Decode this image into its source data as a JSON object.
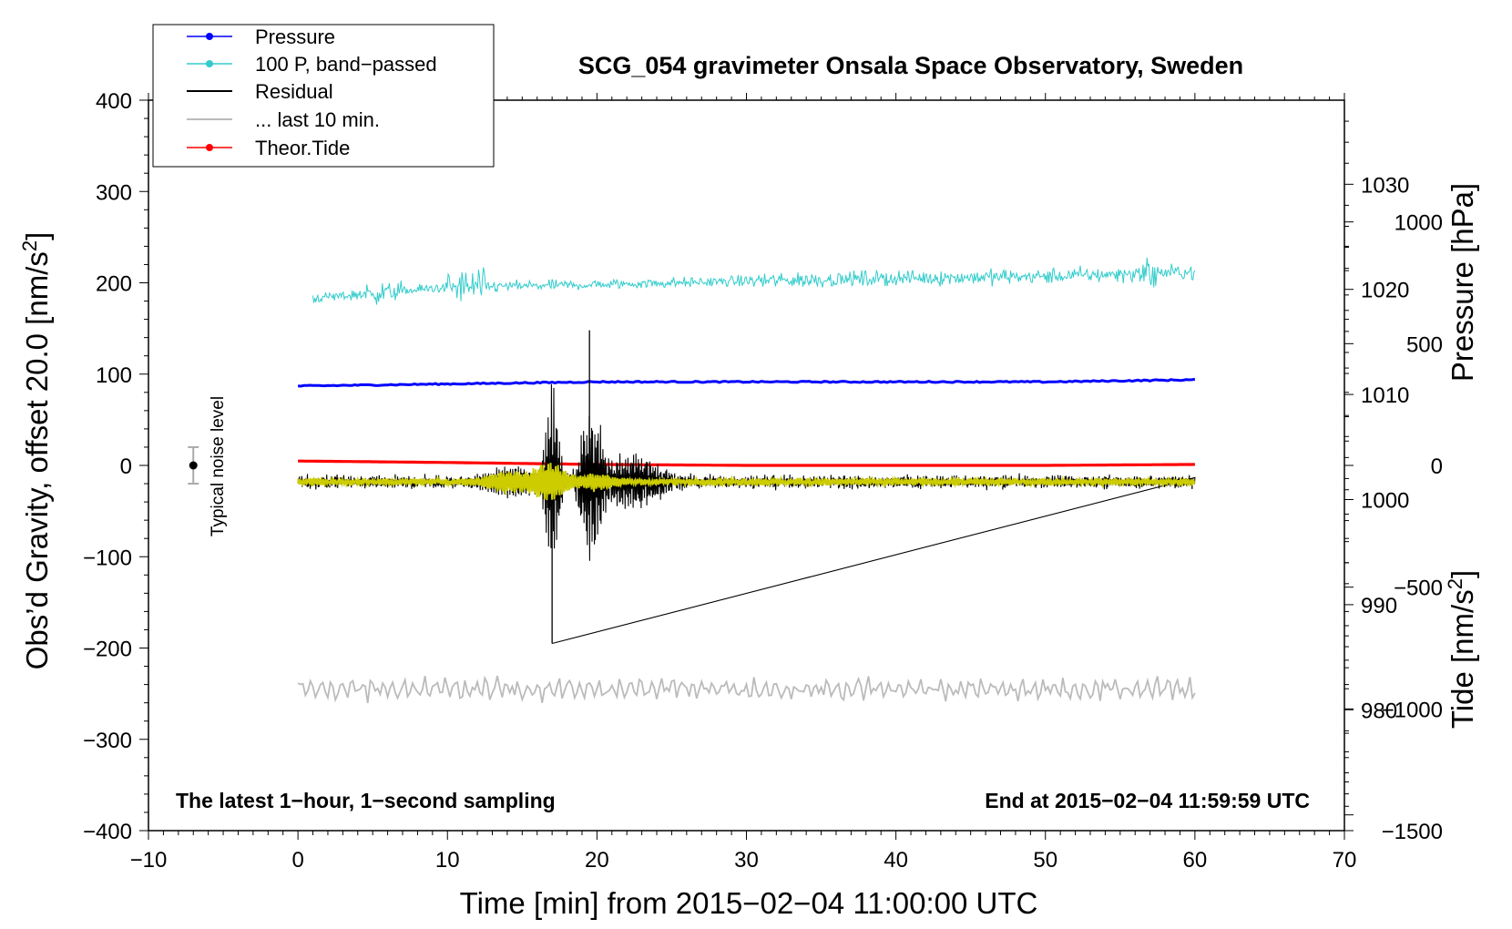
{
  "chart_data": {
    "type": "line",
    "title": "SCG_054 gravimeter Onsala Space Observatory, Sweden",
    "xlabel": "Time [min] from 2015−02−04 11:00:00 UTC",
    "ylabel_left_main": "Obs’d Gravity, offset 20.0 [nm/s",
    "ylabel_left_sup": "2",
    "ylabel_left_end": "]",
    "ylabel_right_pressure": "Pressure [hPa]",
    "ylabel_right_tide_main": "Tide [nm/s",
    "ylabel_right_tide_sup": "2",
    "ylabel_right_tide_end": "]",
    "xlim": [
      -10,
      70
    ],
    "ylim_left": [
      -400,
      400
    ],
    "ylim_pressure": [
      968.5,
      1038
    ],
    "ylim_tide": [
      -1500,
      1500
    ],
    "x_ticks": [
      -10,
      0,
      10,
      20,
      30,
      40,
      50,
      60,
      70
    ],
    "x_tick_labels": [
      "−10",
      "0",
      "10",
      "20",
      "30",
      "40",
      "50",
      "60",
      "70"
    ],
    "y_left_ticks": [
      -400,
      -300,
      -200,
      -100,
      0,
      100,
      200,
      300,
      400
    ],
    "y_left_tick_labels": [
      "−400",
      "−300",
      "−200",
      "−100",
      "0",
      "100",
      "200",
      "300",
      "400"
    ],
    "y_pressure_ticks": [
      980,
      990,
      1000,
      1010,
      1020,
      1030
    ],
    "y_pressure_tick_labels": [
      "980",
      "990",
      "1000",
      "1010",
      "1020",
      "1030"
    ],
    "y_tide_ticks": [
      -1500,
      -1000,
      -500,
      0,
      500,
      1000
    ],
    "y_tide_tick_labels": [
      "−1500",
      "−1000",
      "−500",
      "0",
      "500",
      "1000"
    ],
    "annotation_left": "The latest 1−hour, 1−second sampling",
    "annotation_right": "End at 2015−02−04 11:59:59 UTC",
    "noise_label": "Typical noise level",
    "noise_marker": {
      "x": -7,
      "y": 0,
      "err": 20
    },
    "legend": [
      {
        "label": "Pressure",
        "color": "#0000ff",
        "marker": true
      },
      {
        "label": "100 P, band−passed",
        "color": "#33cccc",
        "marker": true
      },
      {
        "label": "Residual",
        "color": "#000000",
        "marker": false
      },
      {
        "label": "... last 10 min.",
        "color": "#bbbbbb",
        "marker": false
      },
      {
        "label": "Theor.Tide",
        "color": "#ff0000",
        "marker": true
      }
    ],
    "series": [
      {
        "name": "Pressure",
        "axis": "pressure",
        "color": "#0000ff",
        "x": [
          0,
          10,
          20,
          30,
          40,
          50,
          60
        ],
        "values": [
          1010.8,
          1011.0,
          1011.2,
          1011.2,
          1011.2,
          1011.2,
          1011.4
        ]
      },
      {
        "name": "100 P, band−passed",
        "axis": "left",
        "color": "#33cccc",
        "x": [
          1,
          10,
          20,
          30,
          40,
          50,
          60
        ],
        "values": [
          183,
          195,
          198,
          202,
          205,
          207,
          212
        ]
      },
      {
        "name": "Residual",
        "axis": "left",
        "color": "#000000",
        "x": [
          0,
          17.0,
          19.5,
          60
        ],
        "values": [
          -18,
          -195,
          148,
          -18
        ]
      },
      {
        "name": "Residual (filtered)",
        "axis": "left",
        "color": "#cccc00",
        "x": [
          0,
          17,
          60
        ],
        "values": [
          -18,
          -18,
          -18
        ]
      },
      {
        "name": "... last 10 min.",
        "axis": "left",
        "color": "#bbbbbb",
        "x": [
          0,
          60
        ],
        "values": [
          -245,
          -245
        ]
      },
      {
        "name": "Theor.Tide",
        "axis": "tide",
        "color": "#ff0000",
        "x": [
          0,
          10,
          20,
          30,
          40,
          50,
          60
        ],
        "values": [
          18,
          12,
          4,
          0,
          0,
          0,
          4
        ]
      }
    ]
  }
}
